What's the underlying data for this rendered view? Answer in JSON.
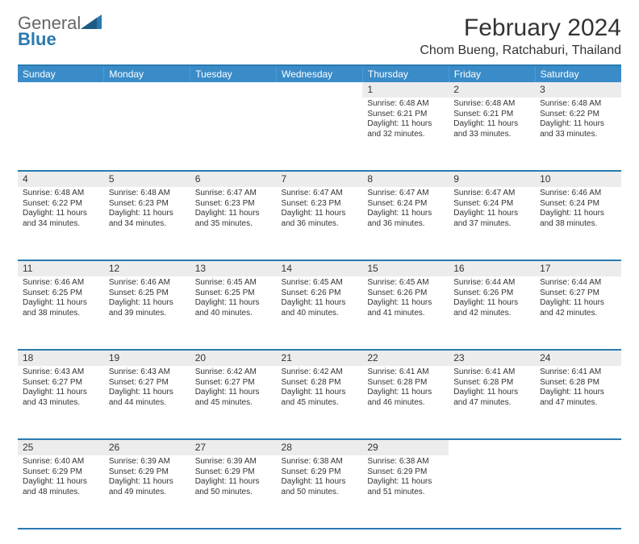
{
  "brand": {
    "general": "General",
    "blue": "Blue"
  },
  "title": "February 2024",
  "location": "Chom Bueng, Ratchaburi, Thailand",
  "colors": {
    "header_bg": "#3a8cc9",
    "border": "#2a7ab0",
    "daynum_bg": "#ececec"
  },
  "day_headers": [
    "Sunday",
    "Monday",
    "Tuesday",
    "Wednesday",
    "Thursday",
    "Friday",
    "Saturday"
  ],
  "weeks": [
    [
      null,
      null,
      null,
      null,
      {
        "n": "1",
        "sr": "6:48 AM",
        "ss": "6:21 PM",
        "dl": "11 hours and 32 minutes."
      },
      {
        "n": "2",
        "sr": "6:48 AM",
        "ss": "6:21 PM",
        "dl": "11 hours and 33 minutes."
      },
      {
        "n": "3",
        "sr": "6:48 AM",
        "ss": "6:22 PM",
        "dl": "11 hours and 33 minutes."
      }
    ],
    [
      {
        "n": "4",
        "sr": "6:48 AM",
        "ss": "6:22 PM",
        "dl": "11 hours and 34 minutes."
      },
      {
        "n": "5",
        "sr": "6:48 AM",
        "ss": "6:23 PM",
        "dl": "11 hours and 34 minutes."
      },
      {
        "n": "6",
        "sr": "6:47 AM",
        "ss": "6:23 PM",
        "dl": "11 hours and 35 minutes."
      },
      {
        "n": "7",
        "sr": "6:47 AM",
        "ss": "6:23 PM",
        "dl": "11 hours and 36 minutes."
      },
      {
        "n": "8",
        "sr": "6:47 AM",
        "ss": "6:24 PM",
        "dl": "11 hours and 36 minutes."
      },
      {
        "n": "9",
        "sr": "6:47 AM",
        "ss": "6:24 PM",
        "dl": "11 hours and 37 minutes."
      },
      {
        "n": "10",
        "sr": "6:46 AM",
        "ss": "6:24 PM",
        "dl": "11 hours and 38 minutes."
      }
    ],
    [
      {
        "n": "11",
        "sr": "6:46 AM",
        "ss": "6:25 PM",
        "dl": "11 hours and 38 minutes."
      },
      {
        "n": "12",
        "sr": "6:46 AM",
        "ss": "6:25 PM",
        "dl": "11 hours and 39 minutes."
      },
      {
        "n": "13",
        "sr": "6:45 AM",
        "ss": "6:25 PM",
        "dl": "11 hours and 40 minutes."
      },
      {
        "n": "14",
        "sr": "6:45 AM",
        "ss": "6:26 PM",
        "dl": "11 hours and 40 minutes."
      },
      {
        "n": "15",
        "sr": "6:45 AM",
        "ss": "6:26 PM",
        "dl": "11 hours and 41 minutes."
      },
      {
        "n": "16",
        "sr": "6:44 AM",
        "ss": "6:26 PM",
        "dl": "11 hours and 42 minutes."
      },
      {
        "n": "17",
        "sr": "6:44 AM",
        "ss": "6:27 PM",
        "dl": "11 hours and 42 minutes."
      }
    ],
    [
      {
        "n": "18",
        "sr": "6:43 AM",
        "ss": "6:27 PM",
        "dl": "11 hours and 43 minutes."
      },
      {
        "n": "19",
        "sr": "6:43 AM",
        "ss": "6:27 PM",
        "dl": "11 hours and 44 minutes."
      },
      {
        "n": "20",
        "sr": "6:42 AM",
        "ss": "6:27 PM",
        "dl": "11 hours and 45 minutes."
      },
      {
        "n": "21",
        "sr": "6:42 AM",
        "ss": "6:28 PM",
        "dl": "11 hours and 45 minutes."
      },
      {
        "n": "22",
        "sr": "6:41 AM",
        "ss": "6:28 PM",
        "dl": "11 hours and 46 minutes."
      },
      {
        "n": "23",
        "sr": "6:41 AM",
        "ss": "6:28 PM",
        "dl": "11 hours and 47 minutes."
      },
      {
        "n": "24",
        "sr": "6:41 AM",
        "ss": "6:28 PM",
        "dl": "11 hours and 47 minutes."
      }
    ],
    [
      {
        "n": "25",
        "sr": "6:40 AM",
        "ss": "6:29 PM",
        "dl": "11 hours and 48 minutes."
      },
      {
        "n": "26",
        "sr": "6:39 AM",
        "ss": "6:29 PM",
        "dl": "11 hours and 49 minutes."
      },
      {
        "n": "27",
        "sr": "6:39 AM",
        "ss": "6:29 PM",
        "dl": "11 hours and 50 minutes."
      },
      {
        "n": "28",
        "sr": "6:38 AM",
        "ss": "6:29 PM",
        "dl": "11 hours and 50 minutes."
      },
      {
        "n": "29",
        "sr": "6:38 AM",
        "ss": "6:29 PM",
        "dl": "11 hours and 51 minutes."
      },
      null,
      null
    ]
  ],
  "labels": {
    "sunrise": "Sunrise:",
    "sunset": "Sunset:",
    "daylight": "Daylight:"
  }
}
